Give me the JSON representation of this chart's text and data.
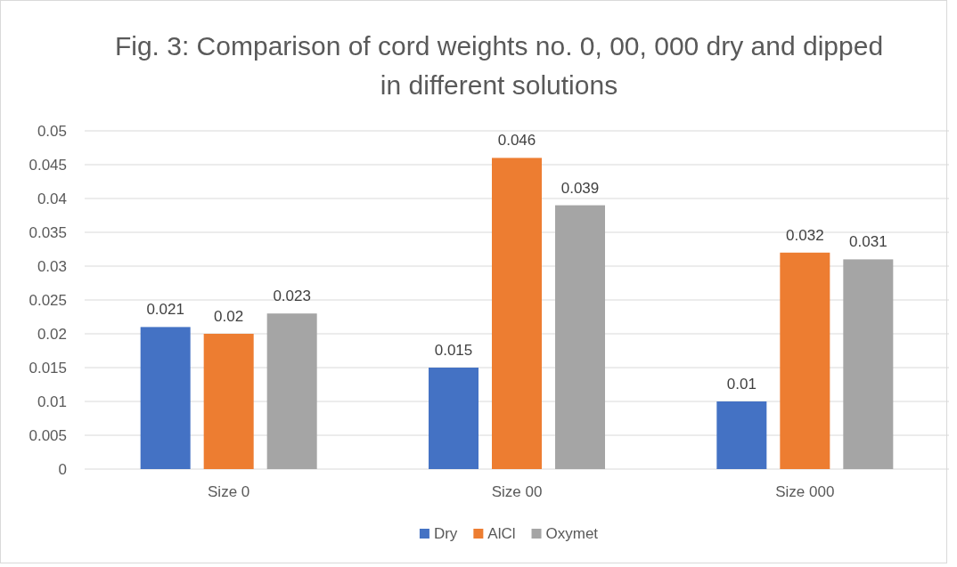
{
  "chart_data": {
    "type": "bar",
    "title": "Fig. 3: Comparison of cord weights no. 0, 00, 000 dry and dipped in different solutions",
    "categories": [
      "Size 0",
      "Size 00",
      "Size 000"
    ],
    "series": [
      {
        "name": "Dry",
        "color": "#4472c4",
        "values": [
          0.021,
          0.015,
          0.01
        ]
      },
      {
        "name": "AlCl",
        "color": "#ed7d31",
        "values": [
          0.02,
          0.046,
          0.032
        ]
      },
      {
        "name": "Oxymet",
        "color": "#a5a5a5",
        "values": [
          0.023,
          0.039,
          0.031
        ]
      }
    ],
    "ylim": [
      0,
      0.05
    ],
    "yticks": [
      0,
      0.005,
      0.01,
      0.015,
      0.02,
      0.025,
      0.03,
      0.035,
      0.04,
      0.045,
      0.05
    ],
    "grid": "y",
    "legend": "bottom",
    "data_labels": true
  }
}
